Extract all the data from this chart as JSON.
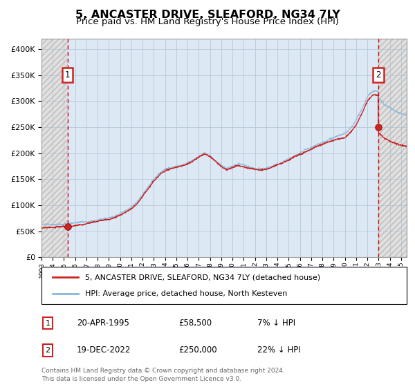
{
  "title": "5, ANCASTER DRIVE, SLEAFORD, NG34 7LY",
  "subtitle": "Price paid vs. HM Land Registry's House Price Index (HPI)",
  "title_fontsize": 11.5,
  "subtitle_fontsize": 9.5,
  "xlim": [
    1993.0,
    2025.5
  ],
  "ylim": [
    0,
    420000
  ],
  "yticks": [
    0,
    50000,
    100000,
    150000,
    200000,
    250000,
    300000,
    350000,
    400000
  ],
  "ytick_labels": [
    "£0",
    "£50K",
    "£100K",
    "£150K",
    "£200K",
    "£250K",
    "£300K",
    "£350K",
    "£400K"
  ],
  "bg_hatch_color": "#d8d8d8",
  "bg_main_color": "#dce8f5",
  "grid_color": "#b8c8d8",
  "transaction1_x": 1995.31,
  "transaction1_y": 58500,
  "transaction2_x": 2022.96,
  "transaction2_y": 250000,
  "sale_line_color": "#cc2222",
  "hpi_line_color": "#88b8d8",
  "legend_sale": "5, ANCASTER DRIVE, SLEAFORD, NG34 7LY (detached house)",
  "legend_hpi": "HPI: Average price, detached house, North Kesteven",
  "table_rows": [
    {
      "num": "1",
      "date": "20-APR-1995",
      "price": "£58,500",
      "hpi": "7% ↓ HPI"
    },
    {
      "num": "2",
      "date": "19-DEC-2022",
      "price": "£250,000",
      "hpi": "22% ↓ HPI"
    }
  ],
  "footer": "Contains HM Land Registry data © Crown copyright and database right 2024.\nThis data is licensed under the Open Government Licence v3.0.",
  "xticks": [
    1993,
    1994,
    1995,
    1996,
    1997,
    1998,
    1999,
    2000,
    2001,
    2002,
    2003,
    2004,
    2005,
    2006,
    2007,
    2008,
    2009,
    2010,
    2011,
    2012,
    2013,
    2014,
    2015,
    2016,
    2017,
    2018,
    2019,
    2020,
    2021,
    2022,
    2023,
    2024,
    2025
  ]
}
